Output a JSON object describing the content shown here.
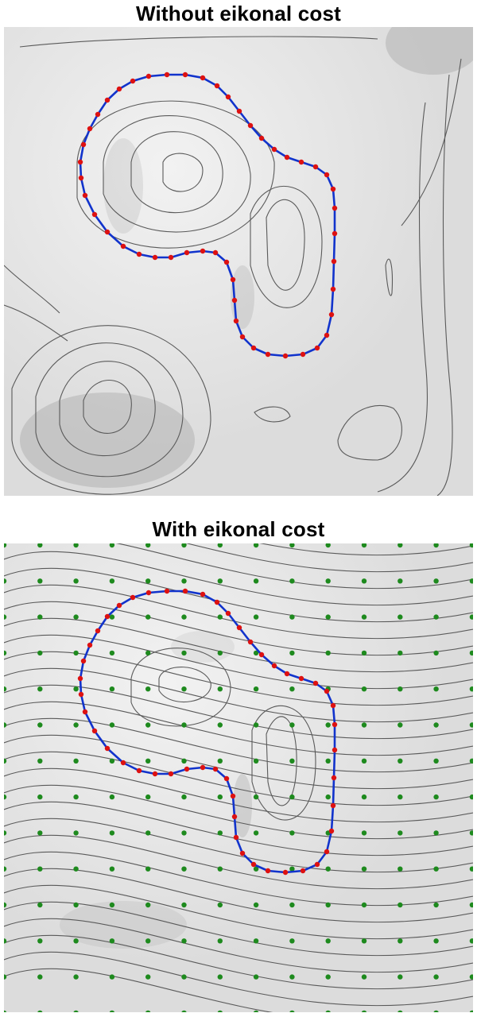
{
  "panels": [
    {
      "title": "Without eikonal cost",
      "grid_points": false
    },
    {
      "title": "With eikonal cost",
      "grid_points": true
    }
  ],
  "colors": {
    "contour": "#5a5a5a",
    "curve": "#1133cc",
    "curve_points": "#dd1111",
    "grid_points": "#1e8a1e",
    "background_light": "#f2f2f2",
    "background_dark": "#9a9a9a"
  }
}
